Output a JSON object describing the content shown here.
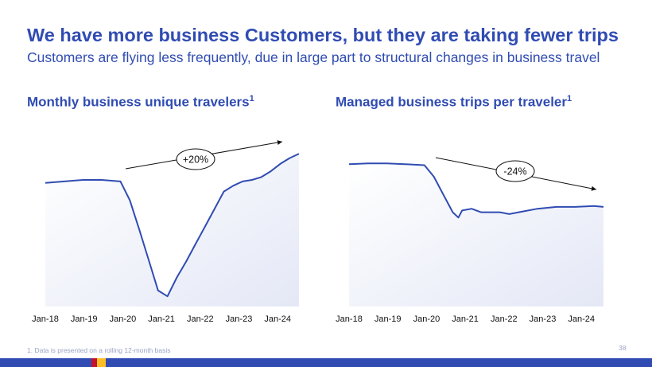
{
  "header": {
    "title": "We have more business Customers, but they are taking fewer trips",
    "subtitle": "Customers are flying less frequently, due in large part to structural changes in business travel"
  },
  "colors": {
    "brand_blue": "#304CB2",
    "line": "#304CB2",
    "fill_gradient_light": "#ffffff",
    "fill_gradient_dark": "#e4e8f6",
    "bottom_stripes": [
      "#304CB2",
      "#C4122F",
      "#FFBF27",
      "#304CB2"
    ]
  },
  "footnote": "1. Data is presented on a rolling 12-month basis",
  "page_number": "38",
  "chart_data": [
    {
      "type": "area",
      "title": "Monthly business unique travelers",
      "title_superscript": "1",
      "annotation": "+20%",
      "x_tick_labels": [
        "Jan-18",
        "Jan-19",
        "Jan-20",
        "Jan-21",
        "Jan-22",
        "Jan-23",
        "Jan-24"
      ],
      "x": [
        2018.0,
        2018.5,
        2019.0,
        2019.5,
        2020.0,
        2020.25,
        2020.5,
        2020.75,
        2021.0,
        2021.25,
        2021.5,
        2021.75,
        2022.0,
        2022.25,
        2022.5,
        2022.75,
        2023.0,
        2023.25,
        2023.5,
        2023.75,
        2024.0,
        2024.25,
        2024.5,
        2024.75
      ],
      "y": [
        100,
        101,
        102,
        102,
        101,
        88,
        68,
        47,
        26,
        22,
        35,
        46,
        58,
        70,
        82,
        94,
        98,
        101,
        102,
        104,
        108,
        113,
        117,
        120
      ],
      "ylim": [
        15,
        125
      ],
      "grid": false,
      "legend": "none"
    },
    {
      "type": "area",
      "title": "Managed business trips per traveler",
      "title_superscript": "1",
      "annotation": "-24%",
      "x_tick_labels": [
        "Jan-18",
        "Jan-19",
        "Jan-20",
        "Jan-21",
        "Jan-22",
        "Jan-23",
        "Jan-24"
      ],
      "x": [
        2018.0,
        2018.5,
        2019.0,
        2019.5,
        2020.0,
        2020.25,
        2020.5,
        2020.75,
        2020.9,
        2021.0,
        2021.25,
        2021.5,
        2022.0,
        2022.25,
        2022.5,
        2023.0,
        2023.5,
        2024.0,
        2024.5,
        2024.75
      ],
      "y": [
        100,
        100.5,
        100.5,
        100,
        99.5,
        93,
        83,
        73,
        70,
        74,
        75,
        73,
        73,
        72,
        73,
        75,
        76,
        76,
        76.5,
        76
      ],
      "ylim": [
        20,
        110
      ],
      "grid": false,
      "legend": "none"
    }
  ]
}
